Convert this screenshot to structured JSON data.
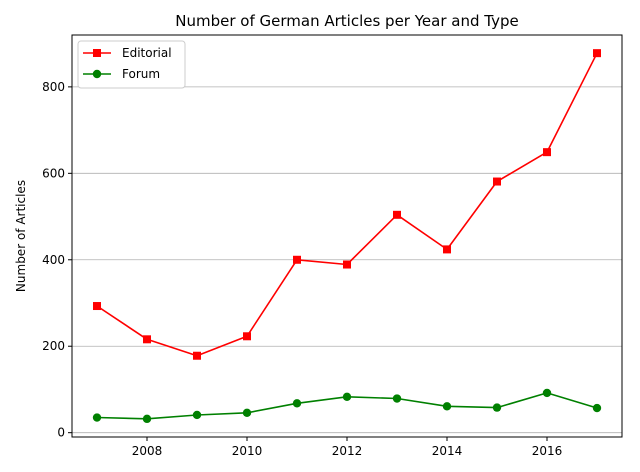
{
  "chart_data": {
    "type": "line",
    "title": "Number of German Articles per Year and Type",
    "xlabel": "",
    "ylabel": "Number of Articles",
    "x": [
      2007,
      2008,
      2009,
      2010,
      2011,
      2012,
      2013,
      2014,
      2015,
      2016,
      2017
    ],
    "xlim": [
      2006.5,
      2017.5
    ],
    "ylim": [
      -10,
      920
    ],
    "xticks": [
      2008,
      2010,
      2012,
      2014,
      2016
    ],
    "yticks": [
      0,
      200,
      400,
      600,
      800
    ],
    "grid": "horizontal",
    "legend_position": "top-left",
    "series": [
      {
        "name": "Editorial",
        "color": "#ff0000",
        "marker": "square",
        "values": [
          293,
          216,
          178,
          223,
          400,
          389,
          504,
          424,
          581,
          649,
          878
        ]
      },
      {
        "name": "Forum",
        "color": "#008000",
        "marker": "circle",
        "values": [
          35,
          32,
          41,
          46,
          68,
          83,
          79,
          61,
          58,
          92,
          57
        ]
      }
    ]
  }
}
